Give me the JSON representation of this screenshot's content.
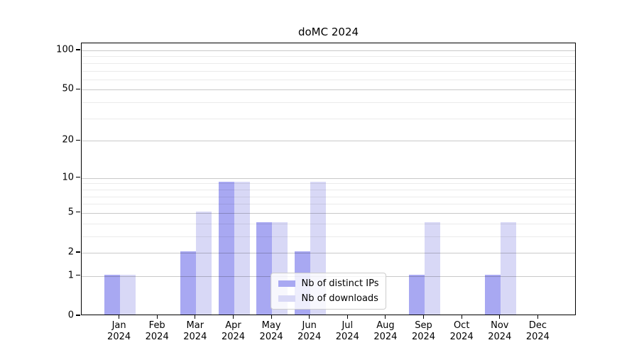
{
  "chart_data": {
    "type": "bar",
    "title": "doMC 2024",
    "categories": [
      "Jan",
      "Feb",
      "Mar",
      "Apr",
      "May",
      "Jun",
      "Jul",
      "Aug",
      "Sep",
      "Oct",
      "Nov",
      "Dec"
    ],
    "year_label": "2024",
    "series": [
      {
        "name": "Nb of distinct IPs",
        "color": "#a8a8f2",
        "values": [
          1,
          0,
          2,
          9,
          4,
          2,
          0,
          0,
          1,
          0,
          1,
          0
        ]
      },
      {
        "name": "Nb of downloads",
        "color": "#d8d8f6",
        "values": [
          1,
          0,
          5,
          9,
          4,
          9,
          0,
          0,
          4,
          0,
          4,
          0
        ]
      }
    ],
    "xlabel": "",
    "ylabel": "",
    "y_axis": {
      "scale": "log1p",
      "tick_values": [
        100,
        50,
        20,
        10,
        5,
        2,
        1,
        0
      ],
      "major_gridlines": [
        1,
        2,
        5,
        10,
        20,
        50,
        100
      ],
      "minor_gridlines": [
        3,
        4,
        6,
        7,
        8,
        9,
        30,
        40,
        60,
        70,
        80,
        90
      ],
      "ylim": [
        0,
        113
      ]
    },
    "legend_position": "lower center",
    "grid": true,
    "colors": {
      "major_grid": "#cccccc",
      "minor_grid": "#ebebeb",
      "spine": "#000000",
      "background": "#ffffff"
    }
  }
}
